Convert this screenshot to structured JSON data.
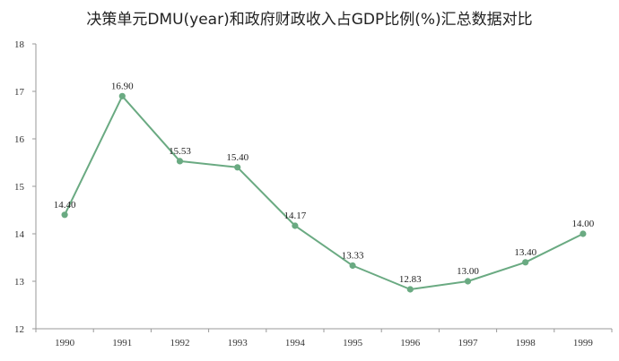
{
  "chart_data": {
    "type": "line",
    "title": "决策单元DMU(year)和政府财政收入占GDP比例(%)汇总数据对比",
    "xlabel": "",
    "ylabel": "",
    "categories": [
      "1990",
      "1991",
      "1992",
      "1993",
      "1994",
      "1995",
      "1996",
      "1997",
      "1998",
      "1999"
    ],
    "series": [
      {
        "values": [
          14.4,
          16.9,
          15.53,
          15.4,
          14.17,
          13.33,
          12.83,
          13.0,
          13.4,
          14.0
        ],
        "labels": [
          "14.40",
          "16.90",
          "15.53",
          "15.40",
          "14.17",
          "13.33",
          "12.83",
          "13.00",
          "13.40",
          "14.00"
        ],
        "color": "#6aaa82"
      }
    ],
    "ylim": [
      12,
      18
    ],
    "yticks": [
      "12",
      "13",
      "14",
      "15",
      "16",
      "17",
      "18"
    ],
    "grid": false,
    "legend": "none"
  }
}
